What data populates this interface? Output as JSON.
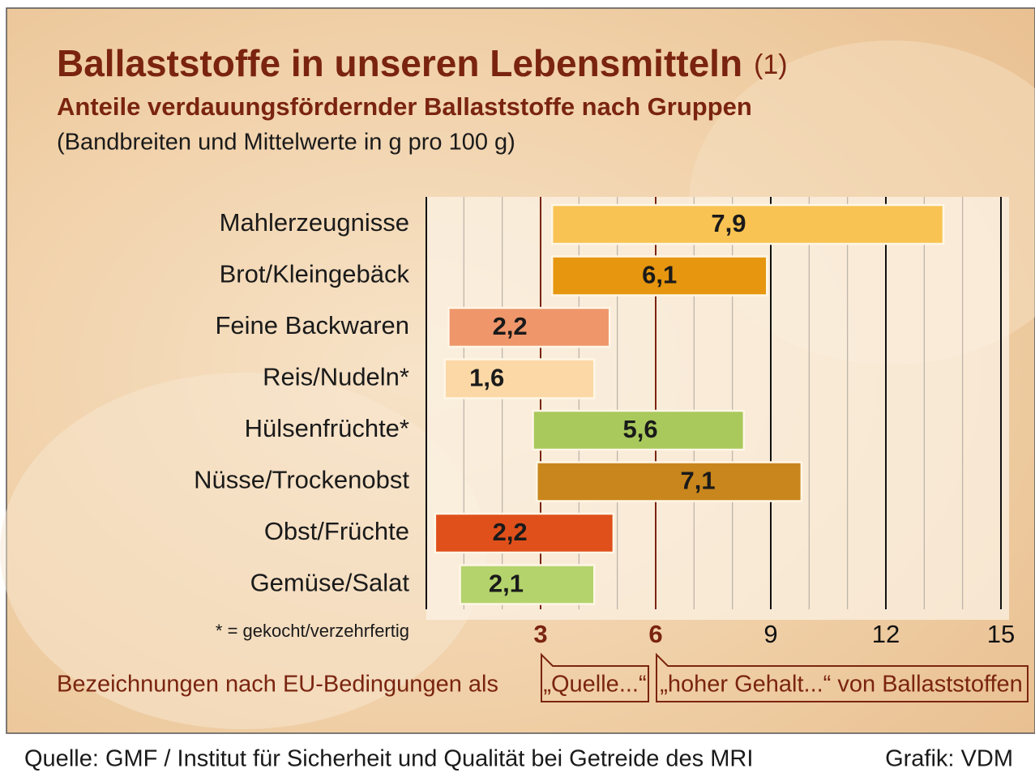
{
  "chart_data": {
    "type": "range_bar",
    "title": "Ballaststoffe in unseren Lebensmitteln",
    "title_note": "(1)",
    "subtitle": "Anteile verdauungsfördernder Ballaststoffe nach Gruppen",
    "unit_note": "(Bandbreiten und Mittelwerte in g pro 100 g)",
    "categories": [
      "Mahlerzeugnisse",
      "Brot/Kleingebäck",
      "Feine Backwaren",
      "Reis/Nudeln*",
      "Hülsenfrüchte*",
      "Nüsse/Trockenobst",
      "Obst/Früchte",
      "Gemüse/Salat"
    ],
    "low": [
      3.3,
      3.3,
      0.6,
      0.5,
      2.8,
      2.9,
      0.25,
      0.9
    ],
    "high": [
      13.5,
      8.9,
      4.8,
      4.4,
      8.3,
      9.8,
      4.9,
      4.4
    ],
    "values": [
      7.9,
      6.1,
      2.2,
      1.6,
      5.6,
      7.1,
      2.2,
      2.1
    ],
    "value_labels": [
      "7,9",
      "6,1",
      "2,2",
      "1,6",
      "5,6",
      "7,1",
      "2,2",
      "2,1"
    ],
    "colors": [
      "#f8c352",
      "#e6960f",
      "#ef966b",
      "#fcd8a6",
      "#a9c95c",
      "#c8861c",
      "#e0501b",
      "#b4d36c"
    ],
    "xlim": [
      0,
      15
    ],
    "xticks": [
      3,
      6,
      9,
      12,
      15
    ],
    "xtick_colors": [
      "#7a2410",
      "#7a2410",
      "#111111",
      "#111111",
      "#111111"
    ],
    "xminorticks": [
      1,
      2,
      4,
      5,
      7,
      8,
      10,
      11,
      13,
      14
    ],
    "footnote": "* = gekocht/verzehrfertig",
    "eu_label": "Bezeichnungen nach EU-Bedingungen als",
    "eu_source_label": "„Quelle...“",
    "eu_high_label": "„hoher Gehalt...“ von Ballaststoffen",
    "source": "Quelle: GMF / Institut für Sicherheit und Qualität bei Getreide des MRI",
    "credit": "Grafik: VDM"
  }
}
